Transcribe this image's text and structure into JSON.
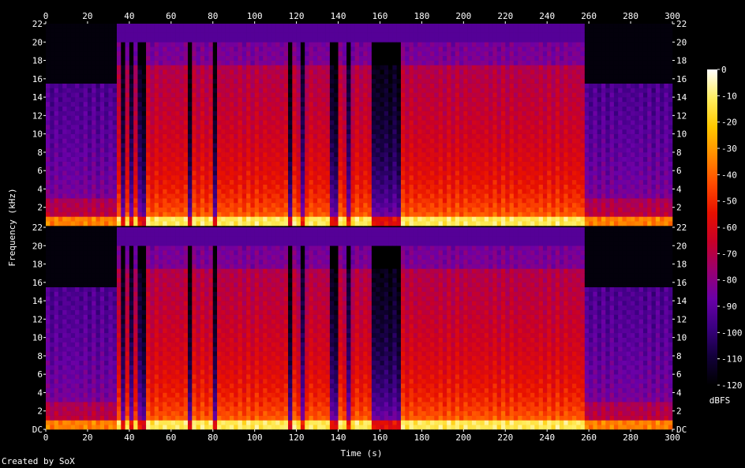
{
  "chart_data": {
    "type": "heatmap",
    "subtype": "spectrogram",
    "channels": 2,
    "xlabel": "Time (s)",
    "ylabel": "Frequency (kHz)",
    "xlim": [
      0,
      300
    ],
    "ylim": [
      0,
      22
    ],
    "x_ticks": [
      0,
      20,
      40,
      60,
      80,
      100,
      120,
      140,
      160,
      180,
      200,
      220,
      240,
      260,
      280,
      300
    ],
    "y_ticks": [
      0,
      2,
      4,
      6,
      8,
      10,
      12,
      14,
      16,
      18,
      20,
      22
    ],
    "y_tick_labels": [
      "DC",
      "2",
      "4",
      "6",
      "8",
      "10",
      "12",
      "14",
      "16",
      "18",
      "20",
      "22"
    ],
    "colorbar": {
      "label": "dBFS",
      "range": [
        -120,
        0
      ],
      "ticks": [
        0,
        -10,
        -20,
        -30,
        -40,
        -50,
        -60,
        -70,
        -80,
        -90,
        -100,
        -110,
        -120
      ],
      "colors": [
        "#000000",
        "#12003a",
        "#3a0080",
        "#6a00a8",
        "#9a0070",
        "#c80028",
        "#e81000",
        "#ff4a00",
        "#ff8c00",
        "#ffc800",
        "#ffee60",
        "#ffffff"
      ]
    },
    "segments": [
      {
        "start": 0,
        "end": 35,
        "level": "quiet",
        "cutoff_khz": 15.6
      },
      {
        "start": 35,
        "end": 171,
        "level": "loud",
        "cutoff_khz": 20
      },
      {
        "start": 171,
        "end": 258,
        "level": "loud",
        "cutoff_khz": 20
      },
      {
        "start": 258,
        "end": 300,
        "level": "quiet",
        "cutoff_khz": 15.6
      }
    ],
    "dropouts": [
      [
        36.5,
        38
      ],
      [
        40,
        42
      ],
      [
        44,
        46
      ],
      [
        47,
        48
      ],
      [
        69,
        70
      ],
      [
        80,
        82
      ],
      [
        116,
        118
      ],
      [
        123,
        125
      ],
      [
        136,
        140
      ],
      [
        145,
        146
      ],
      [
        157,
        162
      ],
      [
        163,
        171
      ]
    ]
  },
  "footer": {
    "credit": "Created by SoX"
  }
}
